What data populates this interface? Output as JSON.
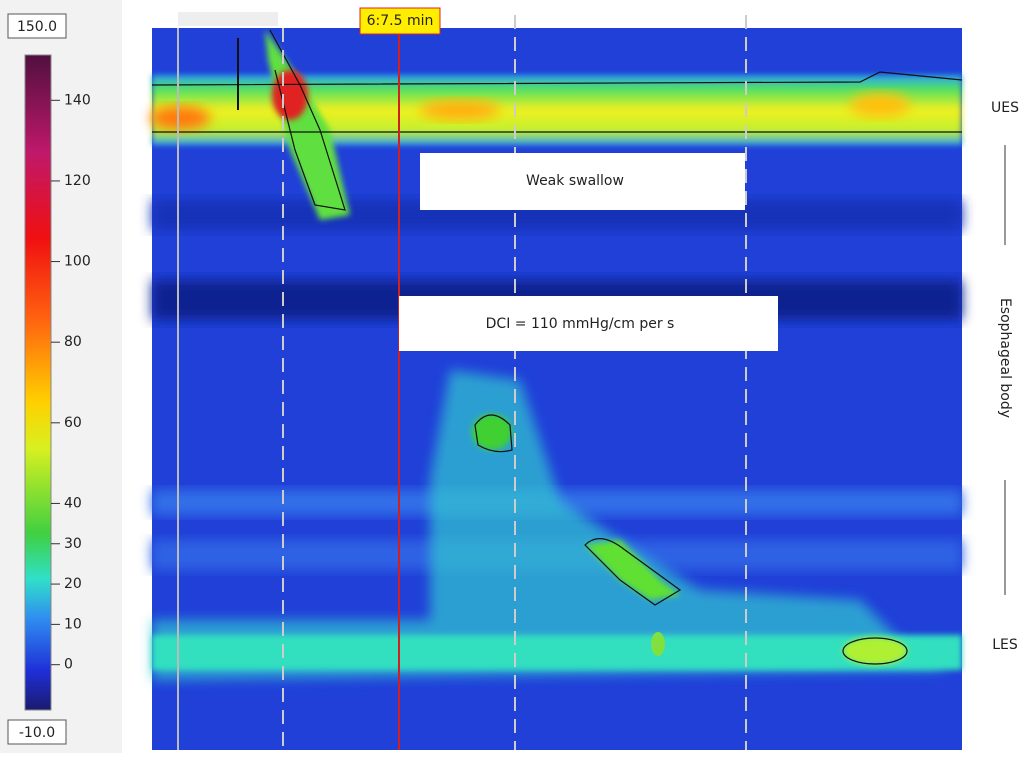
{
  "colorbar": {
    "limits": [
      {
        "value": 150,
        "label": "150.0"
      },
      {
        "value": -10,
        "label": "-10.0"
      }
    ],
    "ticks": [
      140,
      120,
      100,
      80,
      60,
      40,
      30,
      20,
      10,
      0
    ]
  },
  "time_marker": "6:7.5 min",
  "annotations": [
    "Weak swallow",
    "DCI = 110 mmHg/cm per s"
  ],
  "regions": [
    "UES",
    "Esophageal body",
    "LES"
  ]
}
